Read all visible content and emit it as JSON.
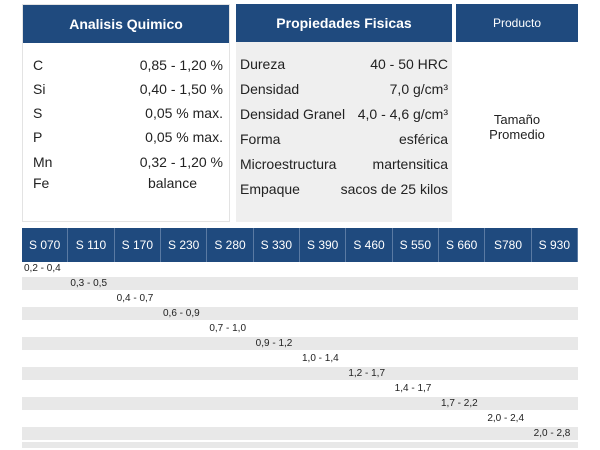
{
  "chem": {
    "title": "Analisis Quimico",
    "rows": [
      {
        "el": "C",
        "val": "0,85 - 1,20 %"
      },
      {
        "el": "Si",
        "val": "0,40 - 1,50 %"
      },
      {
        "el": "S",
        "val": "0,05 % max."
      },
      {
        "el": "P",
        "val": "0,05  % max."
      },
      {
        "el": "Mn",
        "val": "0,32 - 1,20 %"
      },
      {
        "el": "Fe",
        "val": "balance"
      }
    ]
  },
  "props": {
    "title": "Propiedades Fisicas",
    "rows": [
      {
        "k": "Dureza",
        "v": "40 - 50 HRC"
      },
      {
        "k": "Densidad",
        "v": "7,0 g/cm³"
      },
      {
        "k": "Densidad Granel",
        "v": "4,0 - 4,6 g/cm³"
      },
      {
        "k": "Forma",
        "v": "esférica"
      },
      {
        "k": "Microestructura",
        "v": "martensitica"
      },
      {
        "k": "Empaque",
        "v": "sacos de 25 kilos"
      }
    ]
  },
  "product": {
    "title": "Producto",
    "size_line1": "Tamaño",
    "size_line2": "Promedio"
  },
  "grades": [
    "S 070",
    "S 110",
    "S 170",
    "S 230",
    "S 280",
    "S 330",
    "S 390",
    "S 460",
    "S 550",
    "S 660",
    "S780",
    "S 930"
  ],
  "sizes": [
    "0,2 - 0,4",
    "0,3 - 0,5",
    "0,4 - 0,7",
    "0,6 - 0,9",
    "0,7 - 1,0",
    "0,9 - 1,2",
    "1,0 - 1,4",
    "1,2 - 1,7",
    "1,4 - 1,7",
    "1,7 - 2,2",
    "2,0 - 2,4",
    "2,0 - 2,8"
  ],
  "colors": {
    "header": "#1f4a7e",
    "stripe": "#e8e8e8",
    "props_bg": "#efefef"
  }
}
